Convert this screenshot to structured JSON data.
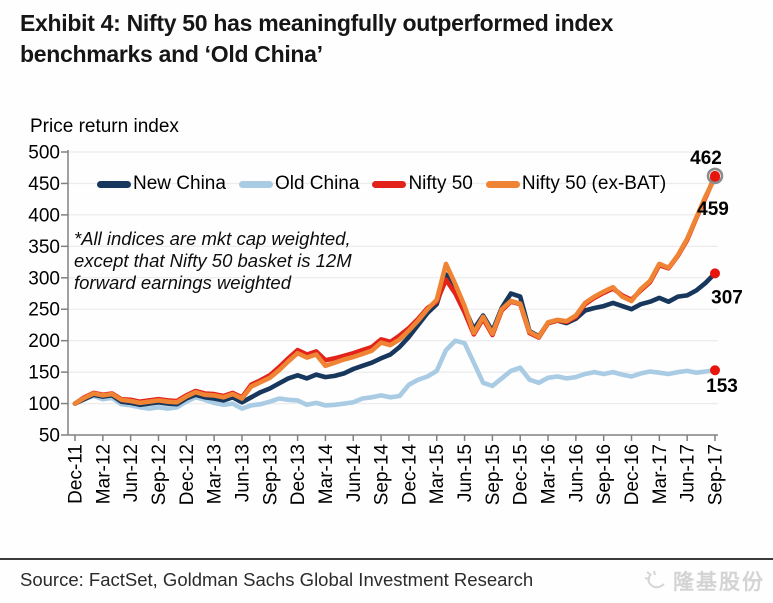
{
  "title": "Exhibit 4: Nifty 50 has meaningfully outperformed index benchmarks and ‘Old China’",
  "chart_data": {
    "type": "line",
    "ylabel": "Price return index",
    "ylim": [
      50,
      500
    ],
    "yticks": [
      50,
      100,
      150,
      200,
      250,
      300,
      350,
      400,
      450,
      500
    ],
    "grid": "horizontal",
    "legend_position": "top",
    "annotation": "*All indices are mkt cap weighted,\nexcept that Nifty 50 basket is 12M\nforward earnings weighted",
    "x_tick_labels": [
      "Dec-11",
      "Mar-12",
      "Jun-12",
      "Sep-12",
      "Dec-12",
      "Mar-13",
      "Jun-13",
      "Sep-13",
      "Dec-13",
      "Mar-14",
      "Jun-14",
      "Sep-14",
      "Dec-14",
      "Mar-15",
      "Jun-15",
      "Sep-15",
      "Dec-15",
      "Mar-16",
      "Jun-16",
      "Sep-16",
      "Dec-16",
      "Mar-17",
      "Jun-17",
      "Sep-17"
    ],
    "points_per_tick": 3,
    "marker_color": "#e8150d",
    "marker_ring_color": "#8c8c8c",
    "series": [
      {
        "name": "New China",
        "color": "#17375d",
        "end_label": {
          "text": "307",
          "color": "#000000",
          "dx": 12,
          "dy": 30
        },
        "values": [
          100,
          107,
          114,
          111,
          113,
          103,
          101,
          98,
          100,
          102,
          100,
          99,
          108,
          114,
          110,
          108,
          105,
          110,
          102,
          110,
          118,
          124,
          132,
          140,
          145,
          140,
          146,
          142,
          144,
          148,
          155,
          160,
          165,
          172,
          178,
          190,
          206,
          225,
          244,
          258,
          305,
          282,
          252,
          218,
          240,
          215,
          252,
          275,
          270,
          215,
          207,
          228,
          232,
          228,
          235,
          248,
          252,
          255,
          260,
          255,
          250,
          258,
          262,
          268,
          262,
          270,
          272,
          280,
          292,
          307
        ]
      },
      {
        "name": "Old China",
        "color": "#a9cce4",
        "end_label": {
          "text": "153",
          "color": "#5f9fd0",
          "dx": 7,
          "dy": 22
        },
        "values": [
          100,
          107,
          112,
          107,
          109,
          99,
          97,
          94,
          92,
          94,
          92,
          94,
          103,
          110,
          106,
          101,
          98,
          100,
          92,
          97,
          99,
          103,
          108,
          106,
          105,
          98,
          101,
          97,
          98,
          100,
          102,
          108,
          110,
          113,
          110,
          112,
          130,
          138,
          143,
          152,
          185,
          200,
          196,
          165,
          133,
          128,
          140,
          152,
          157,
          138,
          133,
          141,
          143,
          140,
          142,
          147,
          150,
          147,
          150,
          146,
          143,
          148,
          151,
          149,
          147,
          150,
          152,
          149,
          151,
          153
        ]
      },
      {
        "name": "Nifty 50",
        "color": "#e2231a",
        "ring": true,
        "end_label": {
          "text": "462",
          "color": "#c00d0d",
          "dx": -9,
          "dy": -12
        },
        "values": [
          100,
          110,
          117,
          114,
          116,
          107,
          106,
          103,
          105,
          107,
          105,
          104,
          113,
          120,
          116,
          115,
          112,
          117,
          110,
          130,
          137,
          145,
          158,
          172,
          185,
          178,
          183,
          169,
          172,
          176,
          180,
          185,
          190,
          202,
          198,
          208,
          220,
          235,
          252,
          262,
          297,
          275,
          245,
          210,
          235,
          209,
          248,
          262,
          258,
          212,
          205,
          228,
          232,
          230,
          238,
          258,
          268,
          276,
          283,
          272,
          265,
          280,
          293,
          320,
          315,
          335,
          360,
          395,
          428,
          462
        ]
      },
      {
        "name": "Nifty 50 (ex-BAT)",
        "color": "#ee8434",
        "end_label": {
          "text": "459",
          "color": "#e9995c",
          "dx": -2,
          "dy": 37
        },
        "values": [
          100,
          109,
          116,
          113,
          115,
          106,
          104,
          101,
          103,
          105,
          103,
          102,
          111,
          118,
          114,
          113,
          110,
          115,
          108,
          127,
          134,
          141,
          153,
          167,
          180,
          173,
          178,
          160,
          165,
          170,
          174,
          179,
          184,
          197,
          193,
          202,
          216,
          232,
          250,
          265,
          322,
          290,
          255,
          212,
          238,
          211,
          250,
          263,
          259,
          214,
          206,
          229,
          233,
          231,
          240,
          260,
          270,
          278,
          285,
          270,
          263,
          282,
          295,
          322,
          316,
          336,
          362,
          396,
          430,
          459
        ]
      }
    ]
  },
  "footer": {
    "source": "Source: FactSet, Goldman Sachs Global Investment Research",
    "watermark": "隆基股份"
  }
}
